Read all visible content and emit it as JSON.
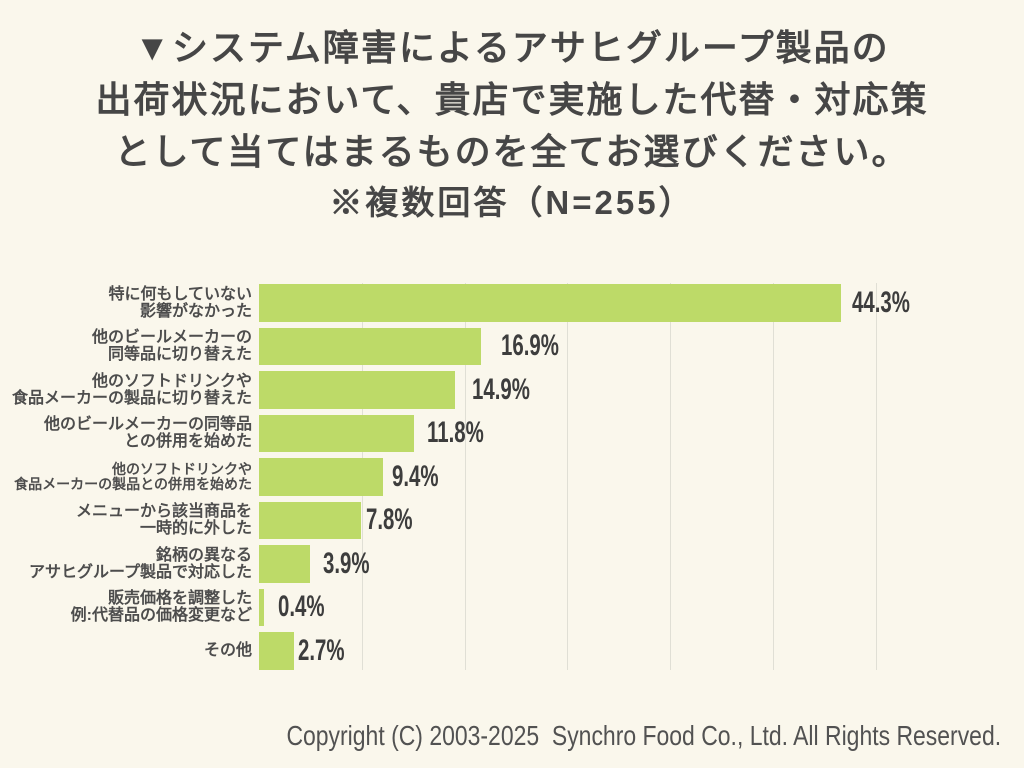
{
  "title": {
    "lines": [
      "▼システム障害によるアサヒグループ製品の",
      "出荷状況において、貴店で実施した代替・対応策",
      "として当てはまるものを全てお選びください。"
    ],
    "subtitle": "※複数回答（N=255）"
  },
  "chart_data": {
    "type": "bar",
    "orientation": "horizontal",
    "categories": [
      [
        "特に何もしていない",
        "影響がなかった"
      ],
      [
        "他のビールメーカーの",
        "同等品に切り替えた"
      ],
      [
        "他のソフトドリンクや",
        "食品メーカーの製品に切り替えた"
      ],
      [
        "他のビールメーカーの同等品",
        "との併用を始めた"
      ],
      [
        "他のソフトドリンクや",
        "食品メーカーの製品との併用を始めた"
      ],
      [
        "メニューから該当商品を",
        "一時的に外した"
      ],
      [
        "銘柄の異なる",
        "アサヒグループ製品で対応した"
      ],
      [
        "販売価格を調整した",
        "例:代替品の価格変更など"
      ],
      [
        "その他"
      ]
    ],
    "values": [
      44.3,
      16.9,
      14.9,
      11.8,
      9.4,
      7.8,
      3.9,
      0.4,
      2.7
    ],
    "unit": "%",
    "n": 255,
    "bar_color": "#bdda68",
    "xlim": [
      0,
      47
    ],
    "gridlines_every_percent": 7.84
  },
  "footer": {
    "copyright": "Copyright (C) 2003-2025  Synchro Food Co., Ltd. All Rights Reserved."
  }
}
